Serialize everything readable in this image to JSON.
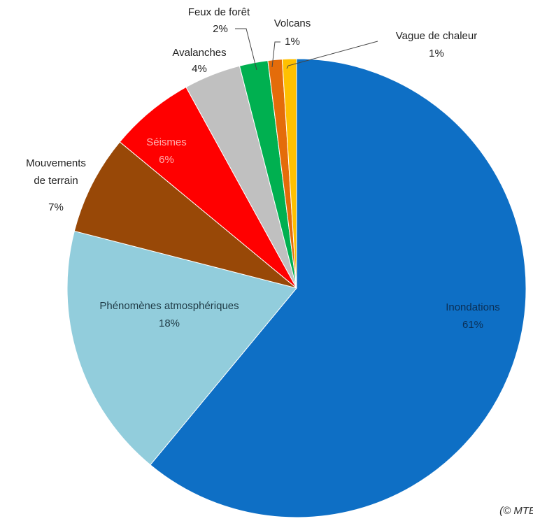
{
  "chart_data": {
    "type": "pie",
    "start_angle_deg": 0,
    "direction": "clockwise",
    "slices": [
      {
        "name": "Inondations",
        "value": 61,
        "label": "61%",
        "color": "#0E6FC5"
      },
      {
        "name": "Phénomènes atmosphériques",
        "value": 18,
        "label": "18%",
        "color": "#92CDDC"
      },
      {
        "name": "Mouvements de terrain",
        "value": 7,
        "label": "7%",
        "color": "#984807"
      },
      {
        "name": "Séismes",
        "value": 6,
        "label": "6%",
        "color": "#FF0000"
      },
      {
        "name": "Avalanches",
        "value": 4,
        "label": "4%",
        "color": "#C0C0C0"
      },
      {
        "name": "Feux de forêt",
        "value": 2,
        "label": "2%",
        "color": "#00B050"
      },
      {
        "name": "Volcans",
        "value": 1,
        "label": "1%",
        "color": "#E46C0A"
      },
      {
        "name": "Vague de chaleur",
        "value": 1,
        "label": "1%",
        "color": "#FFC000"
      }
    ]
  },
  "labels": {
    "inondations": {
      "name": "Inondations",
      "pct": "61%"
    },
    "atmos": {
      "name": "Phénomènes atmosphériques",
      "pct": "18%"
    },
    "mouvements": {
      "line1": "Mouvements",
      "line2": "de terrain",
      "pct": "7%"
    },
    "seismes": {
      "name": "Séismes",
      "pct": "6%"
    },
    "avalanches": {
      "name": "Avalanches",
      "pct": "4%"
    },
    "feux": {
      "name": "Feux de forêt",
      "pct": "2%"
    },
    "volcans": {
      "name": "Volcans",
      "pct": "1%"
    },
    "vague": {
      "name": "Vague de chaleur",
      "pct": "1%"
    }
  },
  "credit": "(© MTE"
}
